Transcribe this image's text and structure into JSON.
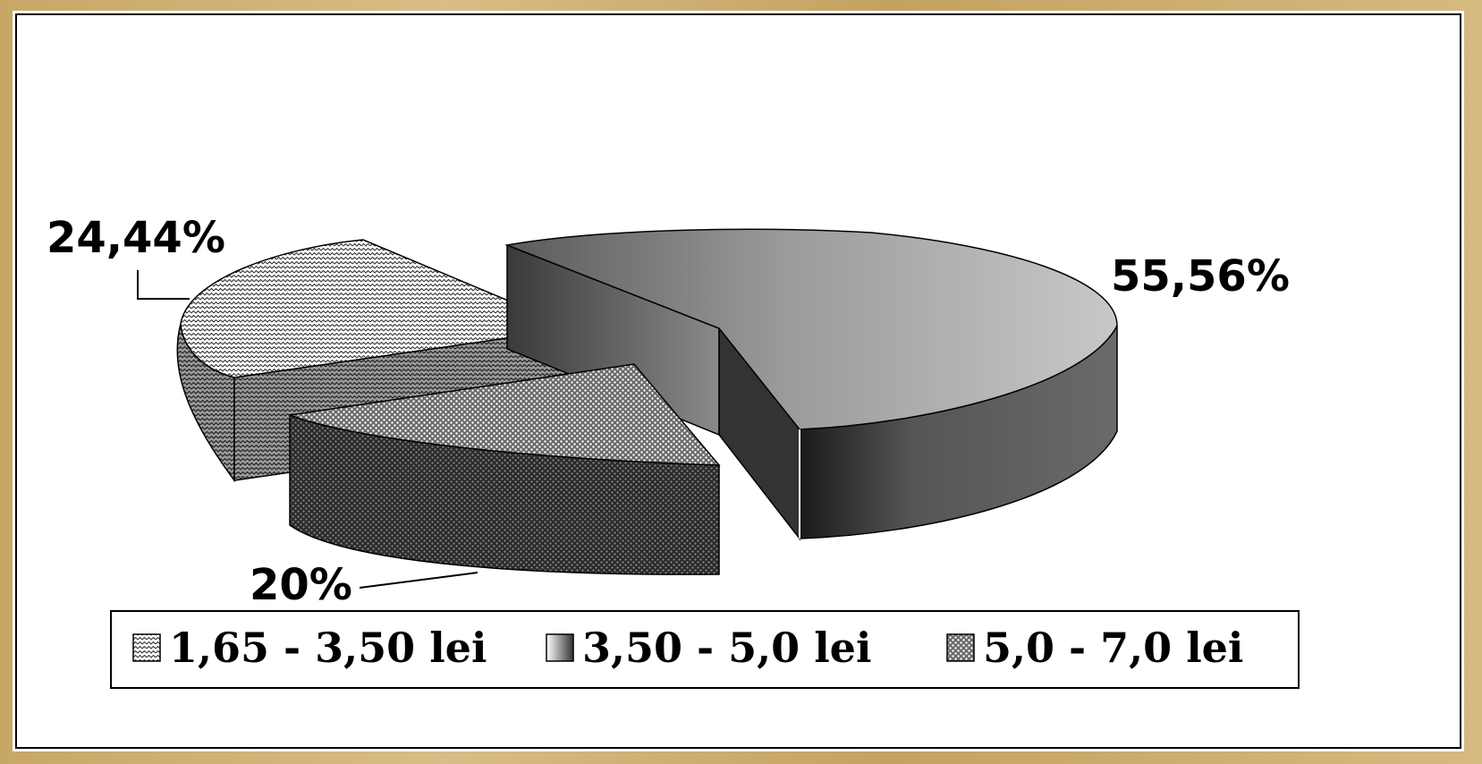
{
  "chart_data": {
    "type": "pie",
    "style": "3d-exploded",
    "labels": [
      "1,65 - 3,50 lei",
      "3,50 - 5,0 lei",
      "5,0 - 7,0 lei"
    ],
    "values": [
      24.44,
      55.56,
      20
    ],
    "data_labels": [
      "24,44%",
      "55,56%",
      "20%"
    ],
    "legend": {
      "placement": "bottom",
      "entries": [
        "1,65 - 3,50 lei",
        "3,50 - 5,0 lei",
        "5,0 - 7,0 lei"
      ]
    },
    "fills": [
      "zigzag-light",
      "gray-gradient",
      "dotted-dark"
    ],
    "colors": {
      "border": "#000000",
      "background": "#ffffff",
      "frame": "#c9ab6e"
    }
  }
}
